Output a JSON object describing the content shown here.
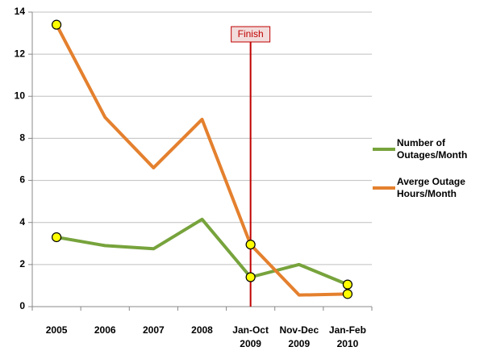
{
  "chart_data": {
    "type": "line",
    "categories": [
      "2005",
      "2006",
      "2007",
      "2008",
      "Jan-Oct 2009",
      "Nov-Dec 2009",
      "Jan-Feb 2010"
    ],
    "series": [
      {
        "name": "Number of Outages/Month",
        "color": "#77a33c",
        "values": [
          3.3,
          2.9,
          2.75,
          4.15,
          1.4,
          2.0,
          1.05
        ]
      },
      {
        "name": "Averge Outage Hours/Month",
        "color": "#e4802e",
        "values": [
          13.4,
          9.0,
          6.6,
          8.9,
          2.95,
          0.55,
          0.6
        ]
      }
    ],
    "highlighted": [
      0,
      4,
      6
    ],
    "highlight_color": "#ffff00",
    "annotation": {
      "text": "Finish",
      "category": 4,
      "color": "#c00000"
    },
    "ylim": [
      0,
      14
    ],
    "yticks": [
      0,
      2,
      4,
      6,
      8,
      10,
      12,
      14
    ],
    "grid": true
  }
}
